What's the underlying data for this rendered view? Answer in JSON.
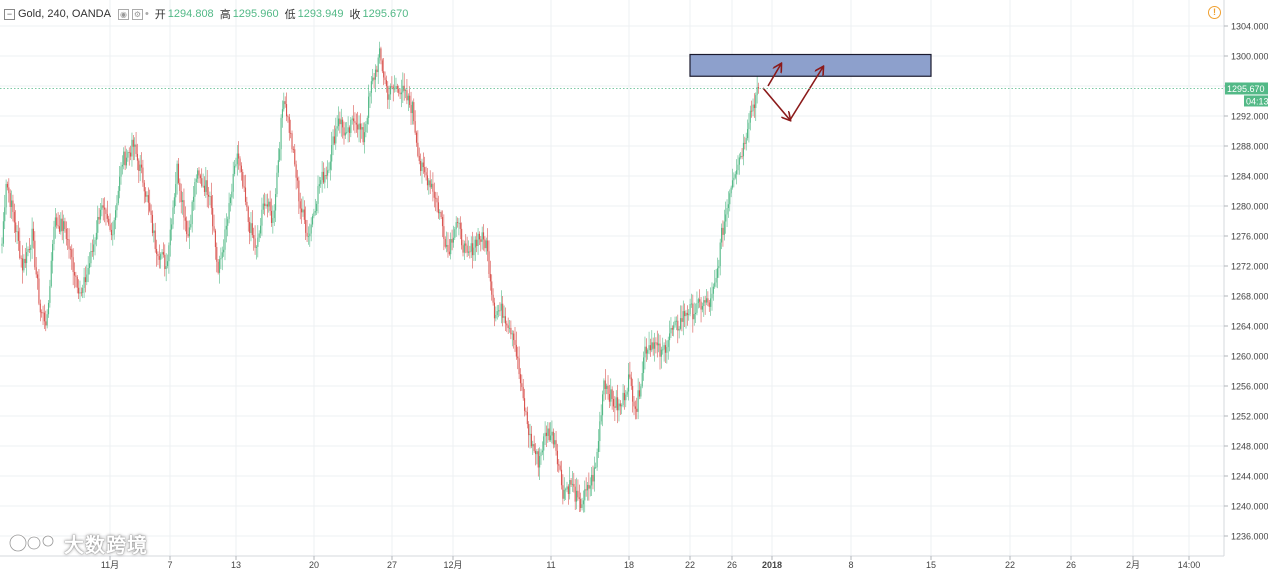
{
  "header": {
    "symbol": "Gold, 240, OANDA",
    "open_label": "开",
    "open": "1294.808",
    "high_label": "高",
    "high": "1295.960",
    "low_label": "低",
    "low": "1293.949",
    "close_label": "收",
    "close": "1295.670"
  },
  "watermark_text": "大数跨境",
  "colors": {
    "up": "#53b987",
    "down": "#d9534f",
    "grid": "#eef0f3",
    "zone": "#8da0cc",
    "arrow": "#8b1a1a",
    "last_price": "#53b987"
  },
  "chart_data": {
    "type": "candlestick",
    "y_axis": {
      "min": 1234,
      "max": 1306,
      "ticks": [
        1236,
        1240,
        1244,
        1248,
        1252,
        1256,
        1260,
        1264,
        1268,
        1272,
        1276,
        1280,
        1284,
        1288,
        1292,
        1296,
        1300,
        1304
      ],
      "tick_labels": [
        "1236.000",
        "1240.000",
        "1244.000",
        "1248.000",
        "1252.000",
        "1256.000",
        "1260.000",
        "1264.000",
        "1268.000",
        "1272.000",
        "1276.000",
        "1280.000",
        "1284.000",
        "1288.000",
        "1292.000",
        "1296.000",
        "1300.000",
        "1304.000"
      ]
    },
    "x_axis": {
      "tick_labels": [
        "11月",
        "7",
        "13",
        "20",
        "27",
        "12月",
        "11",
        "18",
        "22",
        "26",
        "2018",
        "8",
        "15",
        "22",
        "26",
        "2月",
        "14:00"
      ]
    },
    "last_price": {
      "value": 1295.67,
      "label": "1295.670",
      "countdown": "04:13"
    },
    "resistance_zone": {
      "low": 1297.3,
      "high": 1300.2
    },
    "waypoints": [
      [
        0,
        1275
      ],
      [
        3,
        1283.5
      ],
      [
        8,
        1279
      ],
      [
        15,
        1272
      ],
      [
        22,
        1276
      ],
      [
        28,
        1266
      ],
      [
        33,
        1264.5
      ],
      [
        38,
        1278
      ],
      [
        46,
        1277
      ],
      [
        52,
        1272
      ],
      [
        58,
        1268
      ],
      [
        66,
        1274
      ],
      [
        72,
        1280
      ],
      [
        80,
        1276
      ],
      [
        88,
        1286
      ],
      [
        96,
        1288
      ],
      [
        104,
        1283
      ],
      [
        112,
        1275
      ],
      [
        120,
        1272
      ],
      [
        128,
        1285
      ],
      [
        136,
        1276
      ],
      [
        142,
        1284
      ],
      [
        152,
        1282
      ],
      [
        158,
        1271
      ],
      [
        164,
        1277
      ],
      [
        172,
        1287
      ],
      [
        180,
        1278
      ],
      [
        186,
        1274
      ],
      [
        192,
        1281
      ],
      [
        198,
        1278
      ],
      [
        206,
        1295
      ],
      [
        212,
        1288
      ],
      [
        218,
        1280
      ],
      [
        224,
        1276
      ],
      [
        232,
        1283
      ],
      [
        238,
        1285
      ],
      [
        246,
        1292
      ],
      [
        252,
        1289
      ],
      [
        258,
        1292
      ],
      [
        264,
        1289
      ],
      [
        270,
        1296
      ],
      [
        276,
        1300
      ],
      [
        282,
        1295
      ],
      [
        290,
        1296
      ],
      [
        300,
        1293
      ],
      [
        306,
        1285
      ],
      [
        314,
        1283
      ],
      [
        320,
        1279
      ],
      [
        326,
        1274
      ],
      [
        332,
        1278
      ],
      [
        340,
        1273
      ],
      [
        348,
        1276
      ],
      [
        354,
        1275
      ],
      [
        360,
        1266
      ],
      [
        366,
        1266
      ],
      [
        374,
        1263
      ],
      [
        380,
        1255
      ],
      [
        386,
        1249
      ],
      [
        392,
        1246
      ],
      [
        398,
        1250
      ],
      [
        404,
        1249
      ],
      [
        410,
        1242
      ],
      [
        416,
        1243
      ],
      [
        422,
        1240
      ],
      [
        428,
        1242
      ],
      [
        434,
        1245
      ],
      [
        440,
        1257
      ],
      [
        446,
        1254
      ],
      [
        452,
        1253
      ],
      [
        458,
        1257
      ],
      [
        464,
        1253
      ],
      [
        470,
        1261
      ],
      [
        476,
        1262
      ],
      [
        482,
        1260
      ],
      [
        488,
        1263
      ],
      [
        494,
        1264
      ],
      [
        500,
        1266
      ],
      [
        506,
        1266
      ],
      [
        512,
        1267
      ],
      [
        518,
        1267
      ],
      [
        522,
        1270
      ],
      [
        526,
        1276
      ],
      [
        530,
        1280
      ],
      [
        534,
        1284
      ],
      [
        538,
        1286
      ],
      [
        542,
        1288
      ],
      [
        546,
        1292
      ],
      [
        550,
        1294
      ],
      [
        553,
        1295.67
      ]
    ]
  }
}
